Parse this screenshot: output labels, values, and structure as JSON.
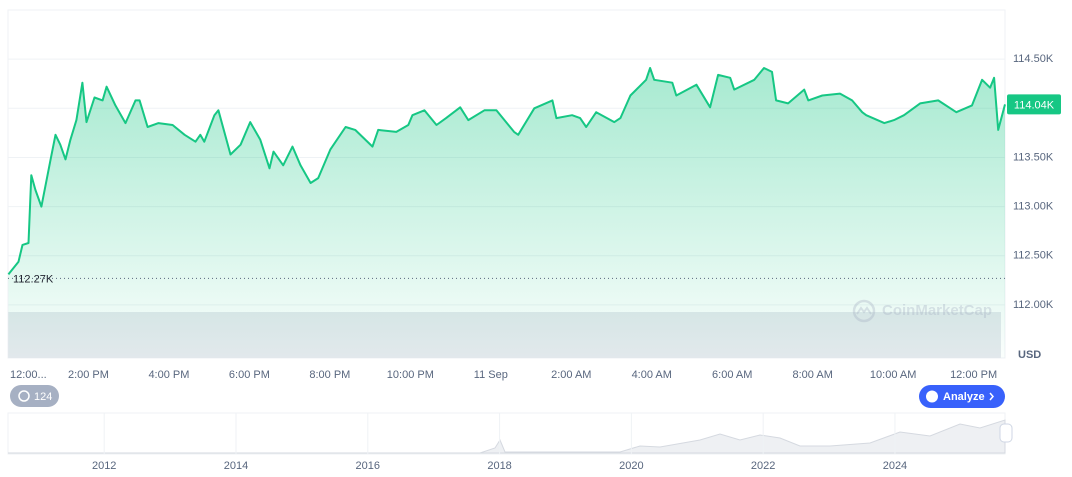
{
  "chart_data": {
    "type": "area",
    "color": "#16c784",
    "grid": true,
    "unit": "USD",
    "watermark": "CoinMarketCap",
    "history_count": 124,
    "analyze_button": "Analyze",
    "last_price": {
      "value": 114040,
      "label": "114.04K"
    },
    "low_price": {
      "value": 112270,
      "label": "112.27K"
    },
    "xlim": [
      0,
      24.78
    ],
    "xticks": [
      {
        "value": 0,
        "label": "12:00..."
      },
      {
        "value": 2,
        "label": "2:00 PM"
      },
      {
        "value": 4,
        "label": "4:00 PM"
      },
      {
        "value": 6,
        "label": "6:00 PM"
      },
      {
        "value": 8,
        "label": "8:00 PM"
      },
      {
        "value": 10,
        "label": "10:00 PM"
      },
      {
        "value": 12,
        "label": "11 Sep"
      },
      {
        "value": 14,
        "label": "2:00 AM"
      },
      {
        "value": 16,
        "label": "4:00 AM"
      },
      {
        "value": 18,
        "label": "6:00 AM"
      },
      {
        "value": 20,
        "label": "8:00 AM"
      },
      {
        "value": 22,
        "label": "10:00 AM"
      },
      {
        "value": 24,
        "label": "12:00 PM"
      }
    ],
    "ylim": [
      111460,
      115000
    ],
    "yticks": [
      {
        "value": 112000,
        "label": "112.00K"
      },
      {
        "value": 112500,
        "label": "112.50K"
      },
      {
        "value": 113000,
        "label": "113.00K"
      },
      {
        "value": 113500,
        "label": "113.50K"
      },
      {
        "value": 114000,
        "label": "114.00K"
      },
      {
        "value": 114500,
        "label": "114.50K"
      }
    ],
    "x": [
      0.01,
      0.26,
      0.36,
      0.51,
      0.58,
      0.68,
      0.83,
      1.06,
      1.18,
      1.3,
      1.43,
      1.55,
      1.7,
      1.85,
      1.95,
      2.15,
      2.35,
      2.45,
      2.67,
      2.92,
      3.17,
      3.27,
      3.47,
      3.74,
      4.09,
      4.39,
      4.66,
      4.78,
      4.88,
      5.13,
      5.23,
      5.53,
      5.78,
      6.02,
      6.27,
      6.5,
      6.6,
      6.84,
      7.07,
      7.27,
      7.52,
      7.71,
      8.01,
      8.39,
      8.63,
      9.06,
      9.2,
      9.65,
      9.95,
      10.05,
      10.35,
      10.65,
      10.89,
      11.24,
      11.44,
      11.84,
      12.14,
      12.58,
      12.68,
      13.08,
      13.53,
      13.63,
      14.02,
      14.22,
      14.37,
      14.62,
      15.07,
      15.22,
      15.47,
      15.86,
      15.96,
      16.06,
      16.51,
      16.61,
      17.11,
      17.45,
      17.65,
      17.95,
      18.05,
      18.55,
      18.79,
      18.99,
      19.09,
      19.39,
      19.79,
      19.89,
      20.24,
      20.68,
      20.98,
      21.23,
      21.33,
      21.78,
      22.02,
      22.27,
      22.67,
      23.12,
      23.57,
      23.96,
      24.21,
      24.41,
      24.51,
      24.61,
      24.78
    ],
    "values": [
      112310,
      112440,
      112610,
      112630,
      113320,
      113170,
      113000,
      113480,
      113730,
      113630,
      113480,
      113680,
      113880,
      114260,
      113860,
      114110,
      114080,
      114220,
      114030,
      113850,
      114080,
      114080,
      113810,
      113850,
      113830,
      113730,
      113660,
      113730,
      113660,
      113930,
      113980,
      113530,
      113630,
      113860,
      113680,
      113390,
      113560,
      113420,
      113610,
      113420,
      113240,
      113290,
      113580,
      113810,
      113780,
      113610,
      113780,
      113760,
      113830,
      113930,
      113980,
      113830,
      113900,
      114010,
      113880,
      113980,
      113980,
      113760,
      113730,
      114000,
      114080,
      113900,
      113930,
      113900,
      113810,
      113960,
      113860,
      113900,
      114130,
      114290,
      114410,
      114290,
      114260,
      114130,
      114240,
      114010,
      114340,
      114310,
      114190,
      114290,
      114410,
      114370,
      114080,
      114050,
      114190,
      114080,
      114130,
      114150,
      114080,
      113960,
      113930,
      113850,
      113880,
      113930,
      114050,
      114080,
      113960,
      114030,
      114290,
      114210,
      114310,
      113780,
      114040
    ],
    "navigator": {
      "xlim": [
        2010.54,
        2025.67
      ],
      "xticks": [
        2012,
        2014,
        2016,
        2018,
        2020,
        2022,
        2024
      ]
    }
  }
}
